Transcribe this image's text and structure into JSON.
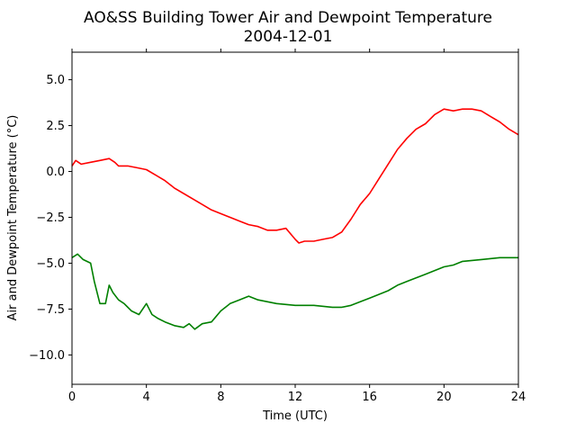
{
  "chart_data": {
    "type": "line",
    "title_line1": "AO&SS Building Tower Air and Dewpoint Temperature",
    "title_line2": "2004-12-01",
    "xlabel": "Time (UTC)",
    "ylabel": "Air and Dewpoint Temperature (°C)",
    "xlim": [
      0,
      24
    ],
    "ylim": [
      -11.6,
      6.5
    ],
    "x_ticks": [
      0,
      4,
      8,
      12,
      16,
      20,
      24
    ],
    "x_tick_labels": [
      "0",
      "4",
      "8",
      "12",
      "16",
      "20",
      "24"
    ],
    "y_ticks": [
      -10.0,
      -7.5,
      -5.0,
      -2.5,
      0.0,
      2.5,
      5.0
    ],
    "y_tick_labels": [
      "−10.0",
      "−7.5",
      "−5.0",
      "−2.5",
      "0.0",
      "2.5",
      "5.0"
    ],
    "grid": false,
    "series": [
      {
        "color": "#ff0000",
        "x": [
          0,
          0.2,
          0.5,
          1.0,
          1.5,
          2.0,
          2.3,
          2.5,
          3.0,
          3.5,
          4.0,
          4.5,
          5.0,
          5.5,
          6.0,
          6.5,
          7.0,
          7.5,
          8.0,
          8.5,
          9.0,
          9.5,
          10.0,
          10.5,
          11.0,
          11.5,
          12.0,
          12.2,
          12.5,
          13.0,
          13.5,
          14.0,
          14.5,
          15.0,
          15.5,
          16.0,
          16.5,
          17.0,
          17.5,
          18.0,
          18.5,
          19.0,
          19.5,
          20.0,
          20.5,
          21.0,
          21.5,
          22.0,
          22.5,
          23.0,
          23.5,
          24.0
        ],
        "values": [
          0.3,
          0.6,
          0.4,
          0.5,
          0.6,
          0.7,
          0.5,
          0.3,
          0.3,
          0.2,
          0.1,
          -0.2,
          -0.5,
          -0.9,
          -1.2,
          -1.5,
          -1.8,
          -2.1,
          -2.3,
          -2.5,
          -2.7,
          -2.9,
          -3.0,
          -3.2,
          -3.2,
          -3.1,
          -3.7,
          -3.9,
          -3.8,
          -3.8,
          -3.7,
          -3.6,
          -3.3,
          -2.6,
          -1.8,
          -1.2,
          -0.4,
          0.4,
          1.2,
          1.8,
          2.3,
          2.6,
          3.1,
          3.4,
          3.3,
          3.4,
          3.4,
          3.3,
          3.0,
          2.7,
          2.3,
          2.0
        ]
      },
      {
        "color": "#008000",
        "x": [
          0,
          0.3,
          0.6,
          1.0,
          1.2,
          1.4,
          1.5,
          1.8,
          2.0,
          2.2,
          2.5,
          2.8,
          3.2,
          3.6,
          4.0,
          4.3,
          4.6,
          5.0,
          5.5,
          6.0,
          6.3,
          6.6,
          7.0,
          7.5,
          8.0,
          8.5,
          9.0,
          9.5,
          10.0,
          11.0,
          12.0,
          13.0,
          14.0,
          14.5,
          15.0,
          15.5,
          16.0,
          16.5,
          17.0,
          17.5,
          18.0,
          18.5,
          19.0,
          19.5,
          20.0,
          20.5,
          21.0,
          22.0,
          23.0,
          24.0
        ],
        "values": [
          -4.7,
          -4.5,
          -4.8,
          -5.0,
          -6.0,
          -6.8,
          -7.2,
          -7.2,
          -6.2,
          -6.6,
          -7.0,
          -7.2,
          -7.6,
          -7.8,
          -7.2,
          -7.8,
          -8.0,
          -8.2,
          -8.4,
          -8.5,
          -8.3,
          -8.6,
          -8.3,
          -8.2,
          -7.6,
          -7.2,
          -7.0,
          -6.8,
          -7.0,
          -7.2,
          -7.3,
          -7.3,
          -7.4,
          -7.4,
          -7.3,
          -7.1,
          -6.9,
          -6.7,
          -6.5,
          -6.2,
          -6.0,
          -5.8,
          -5.6,
          -5.4,
          -5.2,
          -5.1,
          -4.9,
          -4.8,
          -4.7,
          -4.7
        ]
      }
    ]
  }
}
